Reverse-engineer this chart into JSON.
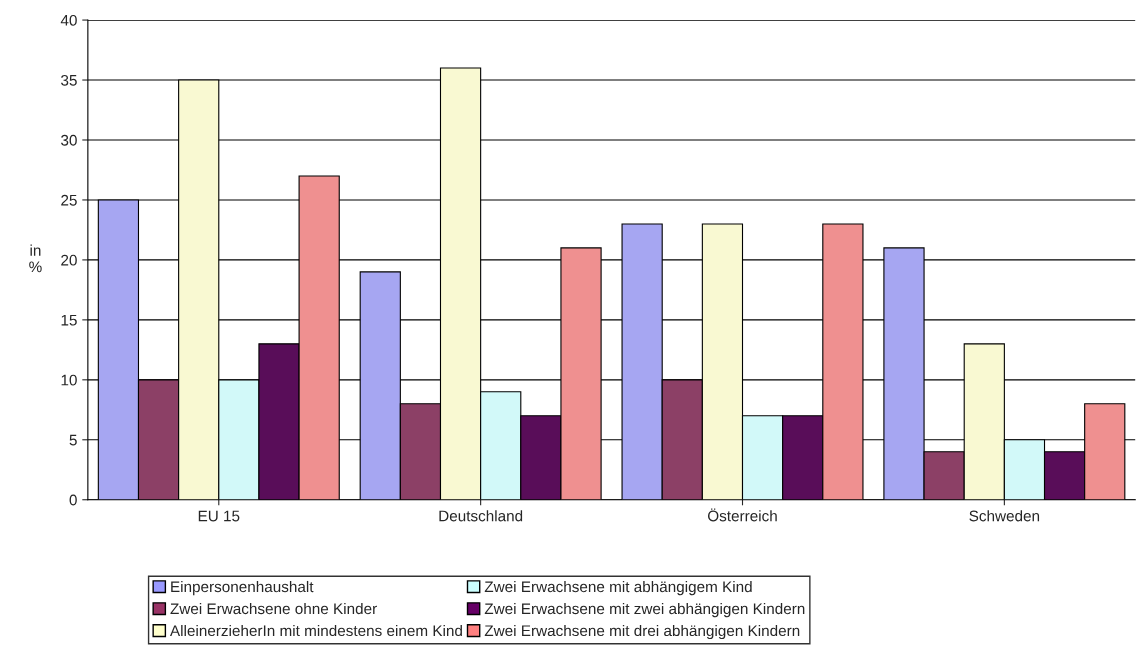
{
  "chart_data": {
    "type": "bar",
    "ylabel": "in\n%",
    "categories": [
      "EU 15",
      "Deutschland",
      "Österreich",
      "Schweden"
    ],
    "series": [
      {
        "name": "Einpersonenhaushalt",
        "color": "#9999ff",
        "values": [
          25,
          19,
          23,
          21
        ]
      },
      {
        "name": "Zwei Erwachsene ohne Kinder",
        "color": "#993366",
        "values": [
          10,
          8,
          10,
          4
        ]
      },
      {
        "name": "AlleinerzieherIn mit mindestens einem Kind",
        "color": "#ffffcc",
        "values": [
          35,
          36,
          23,
          13
        ]
      },
      {
        "name": "Zwei Erwachsene mit abhängigem Kind",
        "color": "#ccffff",
        "values": [
          10,
          9,
          7,
          5
        ]
      },
      {
        "name": "Zwei Erwachsene mit zwei abhängigen Kindern",
        "color": "#660066",
        "values": [
          13,
          7,
          7,
          4
        ]
      },
      {
        "name": "Zwei Erwachsene mit drei abhängigen Kindern",
        "color": "#ff8080",
        "values": [
          27,
          21,
          23,
          8
        ]
      }
    ],
    "ylim": [
      0,
      40
    ],
    "yticks": [
      0,
      5,
      10,
      15,
      20,
      25,
      30,
      35,
      40
    ],
    "grid": "y",
    "legend": "bottom"
  }
}
